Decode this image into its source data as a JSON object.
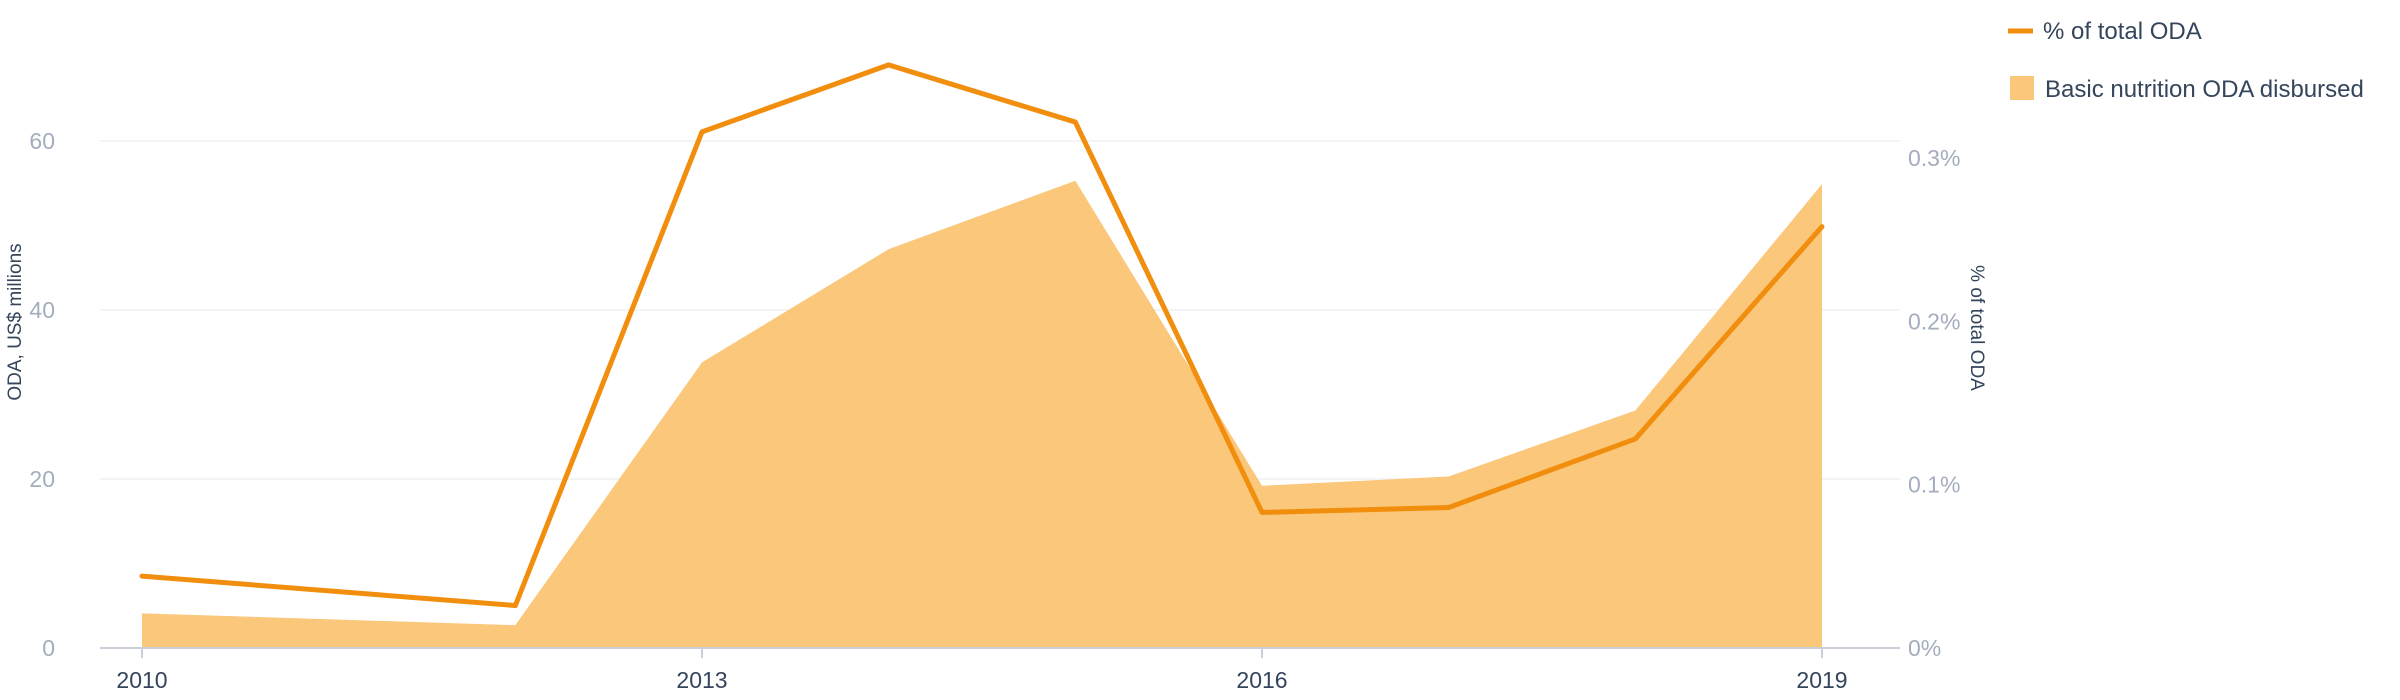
{
  "chart_data": {
    "type": "area",
    "x": [
      "2010",
      "2012",
      "2013",
      "2014",
      "2015",
      "2016",
      "2017",
      "2018",
      "2019"
    ],
    "x_tick_labels": [
      "2010",
      "2013",
      "2016",
      "2019"
    ],
    "xlim": [
      2010,
      2019
    ],
    "series": [
      {
        "name": "Basic nutrition ODA disbursed",
        "type": "area",
        "axis": "left",
        "color": "#fbc77a",
        "values": [
          4.1,
          2.7,
          33.8,
          47.2,
          55.3,
          19.2,
          20.3,
          28.1,
          54.9
        ]
      },
      {
        "name": "% of total ODA",
        "type": "line",
        "axis": "right",
        "color": "#f18e0e",
        "values": [
          0.044,
          0.026,
          0.316,
          0.357,
          0.322,
          0.083,
          0.086,
          0.128,
          0.258
        ]
      }
    ],
    "y_left": {
      "label": "ODA, US$ millions",
      "ylim": [
        0,
        70
      ],
      "ticks": [
        0,
        20,
        40,
        60
      ],
      "tick_labels": [
        "0",
        "20",
        "40",
        "60"
      ]
    },
    "y_right": {
      "label": "% of total ODA",
      "ylim": [
        0,
        0.3626
      ],
      "ticks": [
        0,
        0.1,
        0.2,
        0.3
      ],
      "tick_labels": [
        "0%",
        "0.1%",
        "0.2%",
        "0.3%"
      ]
    },
    "grid": true,
    "legend_position": "top-right",
    "legend": [
      {
        "label": "% of total ODA",
        "marker": "line",
        "color": "#f18e0e"
      },
      {
        "label": "Basic nutrition ODA disbursed",
        "marker": "square",
        "color": "#fbc77a"
      }
    ]
  }
}
